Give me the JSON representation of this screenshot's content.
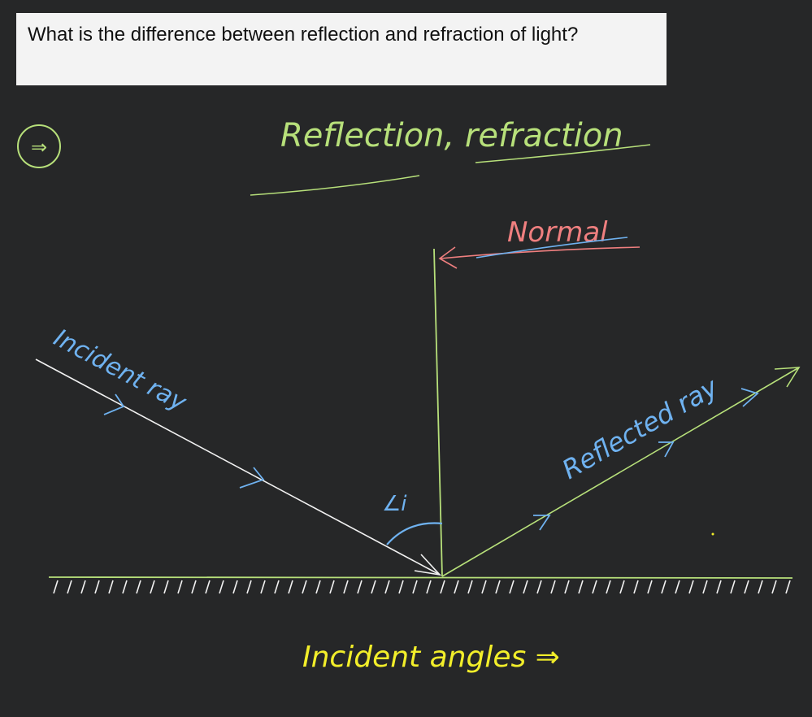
{
  "question": {
    "text": "What is the difference between reflection and refraction of light?"
  },
  "annotations": {
    "answer_mark": "⇒",
    "heading": "Reflection,  refraction",
    "normal_label": "Normal",
    "incident_ray_label": "Incident ray",
    "reflected_ray_label": "Reflected ray",
    "angle_label": "∠i",
    "footer_label": "Incident angles ⇒"
  },
  "colors": {
    "board": "#262728",
    "green": "#b7e07a",
    "pink": "#ef7f7f",
    "blue": "#6fb2f0",
    "white": "#f2f2f2",
    "yellow": "#f2ee2a"
  }
}
